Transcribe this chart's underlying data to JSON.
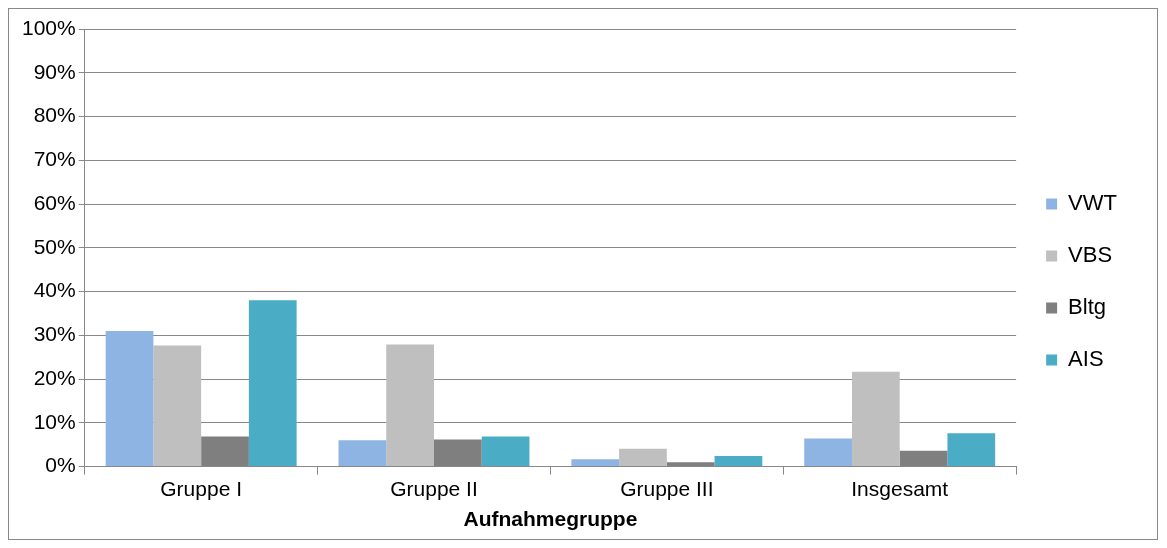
{
  "chart_data": {
    "type": "bar",
    "xlabel": "Aufnahmegruppe",
    "categories": [
      "Gruppe I",
      "Gruppe II",
      "Gruppe III",
      "Insgesamt"
    ],
    "series": [
      {
        "name": "VWT",
        "color": "#8eb4e3",
        "values": [
          31,
          6,
          1.7,
          6.4
        ]
      },
      {
        "name": "VBS",
        "color": "#bfbfbf",
        "values": [
          27.7,
          27.9,
          4.1,
          21.7
        ]
      },
      {
        "name": "Bltg",
        "color": "#7f7f7f",
        "values": [
          6.9,
          6.2,
          1,
          3.6
        ]
      },
      {
        "name": "AIS",
        "color": "#4bacc6",
        "values": [
          38,
          6.9,
          2.4,
          7.6
        ]
      }
    ],
    "ylim": [
      0,
      100
    ],
    "yticks": [
      {
        "value": 0,
        "label": "0%"
      },
      {
        "value": 10,
        "label": "10%"
      },
      {
        "value": 20,
        "label": "20%"
      },
      {
        "value": 30,
        "label": "30%"
      },
      {
        "value": 40,
        "label": "40%"
      },
      {
        "value": 50,
        "label": "50%"
      },
      {
        "value": 60,
        "label": "60%"
      },
      {
        "value": 70,
        "label": "70%"
      },
      {
        "value": 80,
        "label": "80%"
      },
      {
        "value": 90,
        "label": "90%"
      },
      {
        "value": 100,
        "label": "100%"
      }
    ],
    "grid": "y",
    "legend": "right"
  }
}
